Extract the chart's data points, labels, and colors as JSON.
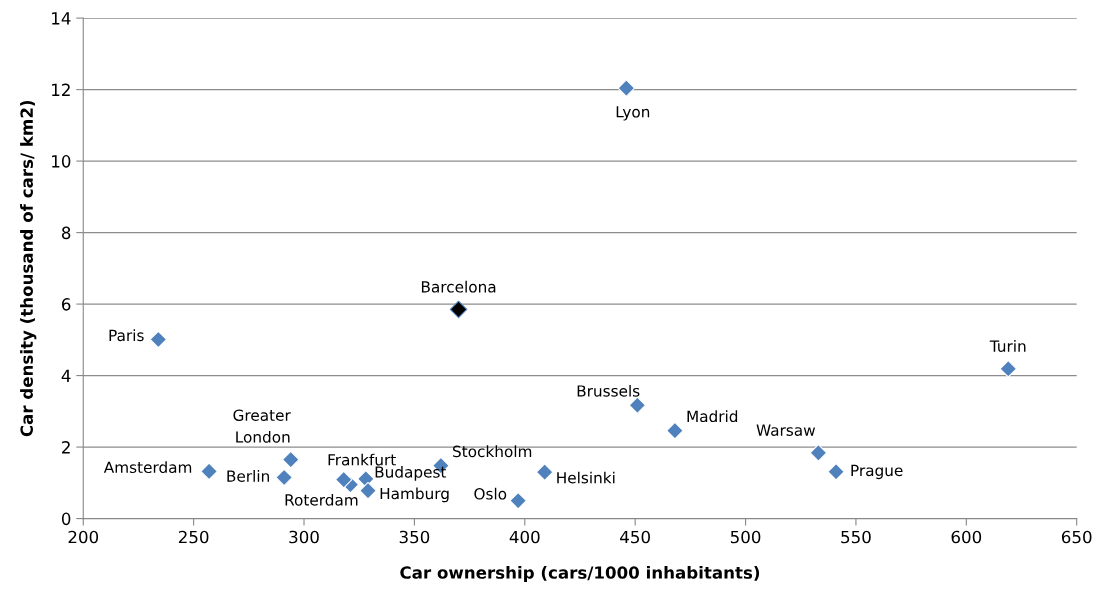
{
  "chart_data": {
    "type": "scatter",
    "xlabel": "Car ownership (cars/1000 inhabitants)",
    "ylabel": "Car density (thousand of cars/ km2)",
    "x": [
      446,
      370,
      234,
      619,
      451,
      468,
      533,
      541,
      409,
      397,
      362,
      328,
      329,
      321,
      318,
      291,
      257,
      294
    ],
    "values": [
      12.04,
      5.85,
      5.01,
      4.19,
      3.17,
      2.46,
      1.84,
      1.31,
      1.3,
      0.5,
      1.48,
      1.11,
      0.78,
      0.95,
      1.09,
      1.15,
      1.32,
      1.65
    ],
    "colors": [
      "#4f81bd",
      "#000000",
      "#4f81bd",
      "#4f81bd",
      "#4f81bd",
      "#4f81bd",
      "#4f81bd",
      "#4f81bd",
      "#4f81bd",
      "#4f81bd",
      "#4f81bd",
      "#4f81bd",
      "#4f81bd",
      "#4f81bd",
      "#4f81bd",
      "#4f81bd",
      "#4f81bd",
      "#4f81bd"
    ],
    "annotations": [
      {
        "text": "Lyon",
        "x": 446,
        "y": 12.04
      },
      {
        "text": "Barcelona",
        "x": 370,
        "y": 5.85
      },
      {
        "text": "Paris",
        "x": 234,
        "y": 5.01
      },
      {
        "text": "Turin",
        "x": 619,
        "y": 4.19
      },
      {
        "text": "Brussels",
        "x": 451,
        "y": 3.17
      },
      {
        "text": "Madrid",
        "x": 468,
        "y": 2.46
      },
      {
        "text": "Warsaw",
        "x": 533,
        "y": 1.84
      },
      {
        "text": "Prague",
        "x": 541,
        "y": 1.31
      },
      {
        "text": "Helsinki",
        "x": 409,
        "y": 1.3
      },
      {
        "text": "Oslo",
        "x": 397,
        "y": 0.5
      },
      {
        "text": "Stockholm",
        "x": 362,
        "y": 1.48
      },
      {
        "text": "Budapest",
        "x": 328,
        "y": 1.11
      },
      {
        "text": "Hamburg",
        "x": 329,
        "y": 0.78
      },
      {
        "text": "Roterdam",
        "x": 321,
        "y": 0.95
      },
      {
        "text": "Frankfurt",
        "x": 318,
        "y": 1.09
      },
      {
        "text": "Berlin",
        "x": 291,
        "y": 1.15
      },
      {
        "text": "Amsterdam",
        "x": 257,
        "y": 1.32
      },
      {
        "text": "Greater\nLondon",
        "x": 294,
        "y": 1.65
      }
    ],
    "xlim": [
      200,
      650
    ],
    "xticks": [
      200,
      250,
      300,
      350,
      400,
      450,
      500,
      550,
      600,
      650
    ],
    "ylim": [
      0,
      14
    ],
    "yticks": [
      0,
      2,
      4,
      6,
      8,
      10,
      12,
      14
    ],
    "grid": "y",
    "marker": "diamond"
  }
}
